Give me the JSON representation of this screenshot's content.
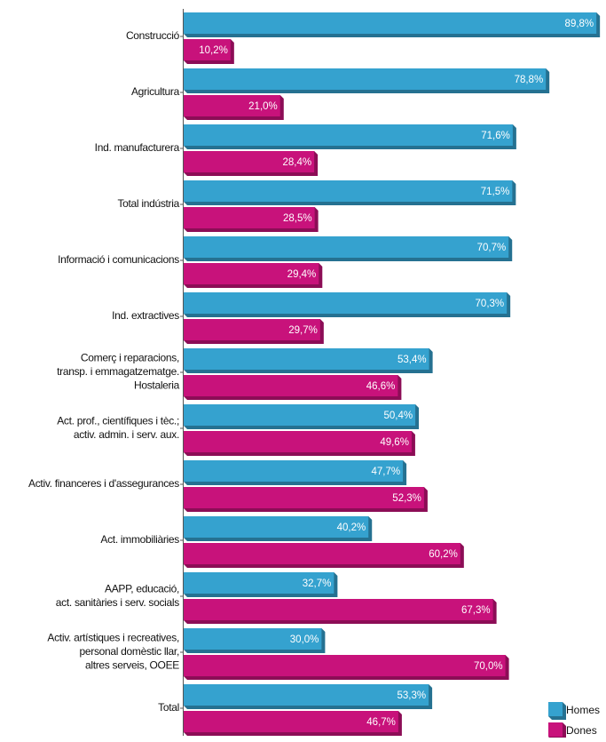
{
  "chart_data": {
    "type": "bar",
    "orientation": "horizontal",
    "categories": [
      [
        "Construcció"
      ],
      [
        "Agricultura"
      ],
      [
        "Ind. manufacturera"
      ],
      [
        "Total indústria"
      ],
      [
        "Informació i comunicacions"
      ],
      [
        "Ind. extractives"
      ],
      [
        "Comerç i reparacions,",
        "transp. i emmagatzematge.",
        "Hostaleria"
      ],
      [
        "Act. prof., científiques i tèc.;",
        "activ. admin. i serv. aux."
      ],
      [
        "Activ. financeres i d'assegurances"
      ],
      [
        "Act. immobiliàries"
      ],
      [
        "AAPP, educació,",
        "act. sanitàries i serv. socials"
      ],
      [
        "Activ. artístiques i recreatives,",
        "personal domèstic llar,",
        "altres serveis, OOEE"
      ],
      [
        "Total"
      ]
    ],
    "series": [
      {
        "name": "Homes",
        "color": "#35a2cf",
        "values": [
          89.8,
          78.8,
          71.6,
          71.5,
          70.7,
          70.3,
          53.4,
          50.4,
          47.7,
          40.2,
          32.7,
          30.0,
          53.3
        ],
        "value_labels": [
          "89,8%",
          "78,8%",
          "71,6%",
          "71,5%",
          "70,7%",
          "70,3%",
          "53,4%",
          "50,4%",
          "47,7%",
          "40,2%",
          "32,7%",
          "30,0%",
          "53,3%"
        ]
      },
      {
        "name": "Dones",
        "color": "#c8127b",
        "values": [
          10.2,
          21.0,
          28.4,
          28.5,
          29.4,
          29.7,
          46.6,
          49.6,
          52.3,
          60.2,
          67.3,
          70.0,
          46.7
        ],
        "value_labels": [
          "10,2%",
          "21,0%",
          "28,4%",
          "28,5%",
          "29,4%",
          "29,7%",
          "46,6%",
          "49,6%",
          "52,3%",
          "60,2%",
          "67,3%",
          "70,0%",
          "46,7%"
        ]
      }
    ],
    "legend": "bottom-right"
  }
}
